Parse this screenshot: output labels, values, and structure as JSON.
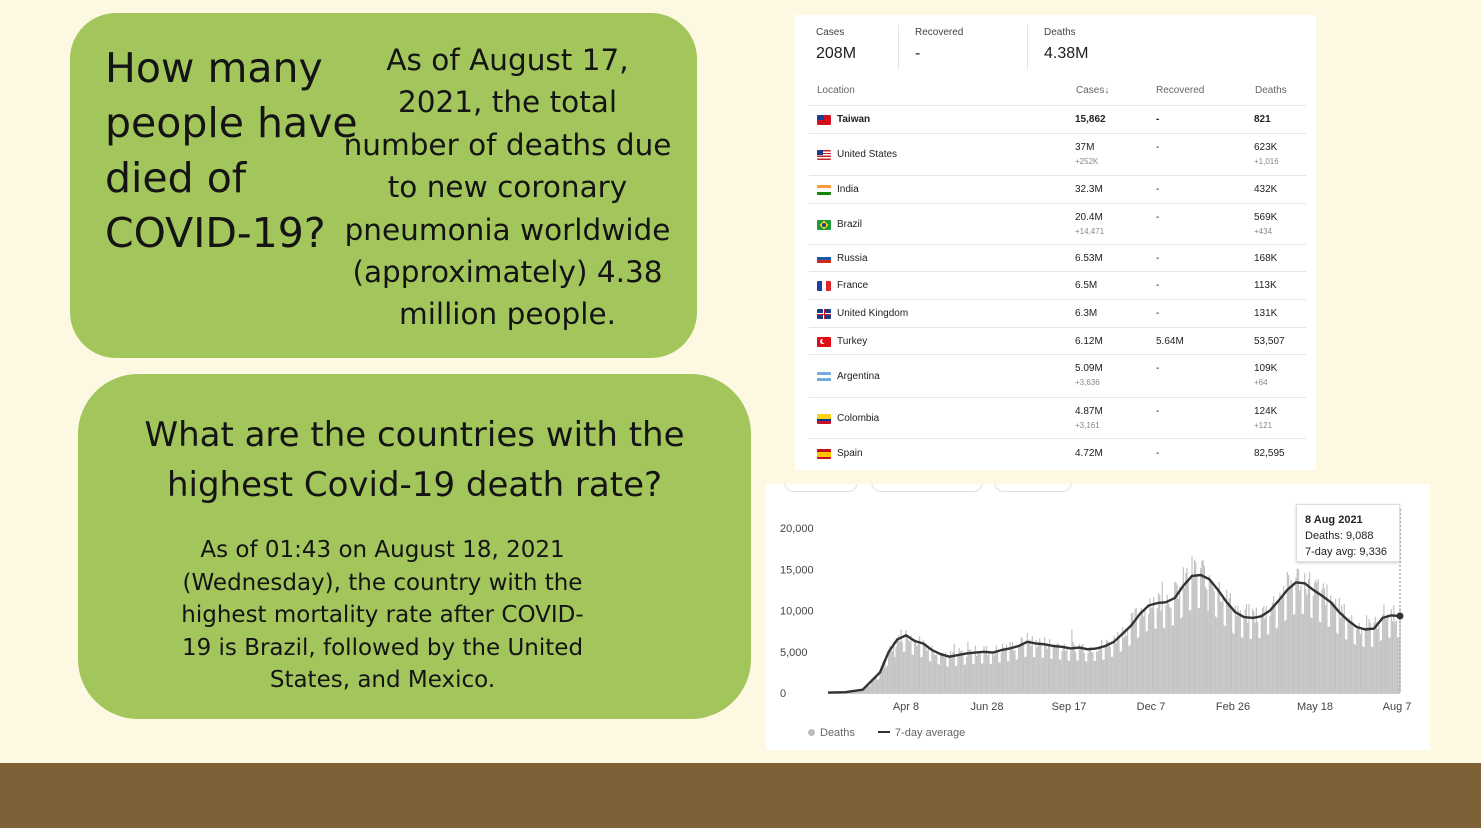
{
  "slide": {
    "question1": "How many people have died of COVID-19?",
    "answer1": "As of August 17, 2021, the total number of deaths due to new coronary pneumonia worldwide (approximately) 4.38 million people.",
    "question2": "What are the countries with the highest Covid-19 death rate?",
    "answer2": "As of 01:43 on August 18, 2021 (Wednesday), the country with the highest mortality rate after COVID-19 is Brazil, followed by the United States, and Mexico."
  },
  "stats": {
    "cases_label": "Cases",
    "cases_value": "208M",
    "recovered_label": "Recovered",
    "recovered_value": "-",
    "deaths_label": "Deaths",
    "deaths_value": "4.38M"
  },
  "table": {
    "headers": {
      "location": "Location",
      "cases": "Cases↓",
      "recovered": "Recovered",
      "deaths": "Deaths"
    },
    "rows": [
      {
        "location": "Taiwan",
        "cases": "15,862",
        "cases_new": "",
        "recovered": "-",
        "deaths": "821",
        "deaths_new": "",
        "bold": true,
        "flag": "taiwan"
      },
      {
        "location": "United States",
        "cases": "37M",
        "cases_new": "+252K",
        "recovered": "-",
        "deaths": "623K",
        "deaths_new": "+1,016",
        "flag": "usa"
      },
      {
        "location": "India",
        "cases": "32.3M",
        "cases_new": "",
        "recovered": "-",
        "deaths": "432K",
        "deaths_new": "",
        "flag": "india"
      },
      {
        "location": "Brazil",
        "cases": "20.4M",
        "cases_new": "+14,471",
        "recovered": "-",
        "deaths": "569K",
        "deaths_new": "+434",
        "flag": "brazil"
      },
      {
        "location": "Russia",
        "cases": "6.53M",
        "cases_new": "",
        "recovered": "-",
        "deaths": "168K",
        "deaths_new": "",
        "flag": "russia"
      },
      {
        "location": "France",
        "cases": "6.5M",
        "cases_new": "",
        "recovered": "-",
        "deaths": "113K",
        "deaths_new": "",
        "flag": "france"
      },
      {
        "location": "United Kingdom",
        "cases": "6.3M",
        "cases_new": "",
        "recovered": "-",
        "deaths": "131K",
        "deaths_new": "",
        "flag": "uk"
      },
      {
        "location": "Turkey",
        "cases": "6.12M",
        "cases_new": "",
        "recovered": "5.64M",
        "deaths": "53,507",
        "deaths_new": "",
        "flag": "turkey"
      },
      {
        "location": "Argentina",
        "cases": "5.09M",
        "cases_new": "+3,636",
        "recovered": "-",
        "deaths": "109K",
        "deaths_new": "+64",
        "flag": "argentina"
      },
      {
        "location": "Colombia",
        "cases": "4.87M",
        "cases_new": "+3,161",
        "recovered": "-",
        "deaths": "124K",
        "deaths_new": "+121",
        "flag": "colombia"
      },
      {
        "location": "Spain",
        "cases": "4.72M",
        "cases_new": "",
        "recovered": "-",
        "deaths": "82,595",
        "deaths_new": "",
        "flag": "spain"
      }
    ]
  },
  "chart_data": {
    "type": "bar",
    "title": "",
    "y_ticks": [
      "20,000",
      "15,000",
      "10,000",
      "5,000",
      "0"
    ],
    "ylim": [
      0,
      20000
    ],
    "x_tick_labels": [
      "Apr 8",
      "Jun 28",
      "Sep 17",
      "Dec 7",
      "Feb 26",
      "May 18",
      "Aug 7"
    ],
    "grid": false,
    "legend_position": "bottom-left",
    "series": [
      {
        "name": "Deaths",
        "kind": "bar",
        "color": "#bdbdbd"
      },
      {
        "name": "7-day average",
        "kind": "line",
        "color": "#333333"
      }
    ],
    "seven_day_average": [
      [
        0,
        50
      ],
      [
        14,
        100
      ],
      [
        28,
        400
      ],
      [
        42,
        2500
      ],
      [
        49,
        5000
      ],
      [
        56,
        6500
      ],
      [
        63,
        7000
      ],
      [
        70,
        6300
      ],
      [
        77,
        6000
      ],
      [
        84,
        5200
      ],
      [
        91,
        4700
      ],
      [
        98,
        4400
      ],
      [
        105,
        4600
      ],
      [
        112,
        4800
      ],
      [
        119,
        4900
      ],
      [
        126,
        5000
      ],
      [
        133,
        4900
      ],
      [
        140,
        5200
      ],
      [
        147,
        5400
      ],
      [
        154,
        5700
      ],
      [
        161,
        6200
      ],
      [
        168,
        6000
      ],
      [
        175,
        5900
      ],
      [
        182,
        5700
      ],
      [
        189,
        5600
      ],
      [
        196,
        5400
      ],
      [
        203,
        5500
      ],
      [
        210,
        5300
      ],
      [
        217,
        5400
      ],
      [
        224,
        5700
      ],
      [
        231,
        6200
      ],
      [
        238,
        7200
      ],
      [
        245,
        8200
      ],
      [
        252,
        9600
      ],
      [
        259,
        10600
      ],
      [
        266,
        10900
      ],
      [
        273,
        11000
      ],
      [
        280,
        11500
      ],
      [
        287,
        13000
      ],
      [
        294,
        14200
      ],
      [
        301,
        14300
      ],
      [
        308,
        13800
      ],
      [
        315,
        12500
      ],
      [
        322,
        11000
      ],
      [
        329,
        9800
      ],
      [
        336,
        9200
      ],
      [
        343,
        9100
      ],
      [
        350,
        9300
      ],
      [
        357,
        10000
      ],
      [
        364,
        11200
      ],
      [
        371,
        12500
      ],
      [
        378,
        13400
      ],
      [
        385,
        13300
      ],
      [
        392,
        12500
      ],
      [
        399,
        11800
      ],
      [
        406,
        11000
      ],
      [
        413,
        9800
      ],
      [
        420,
        8800
      ],
      [
        427,
        8000
      ],
      [
        434,
        7700
      ],
      [
        441,
        7800
      ],
      [
        448,
        9100
      ],
      [
        455,
        9400
      ],
      [
        462,
        9336
      ]
    ],
    "tooltip": {
      "date": "8 Aug 2021",
      "deaths": "Deaths: 9,088",
      "avg": "7-day avg: 9,336"
    }
  }
}
